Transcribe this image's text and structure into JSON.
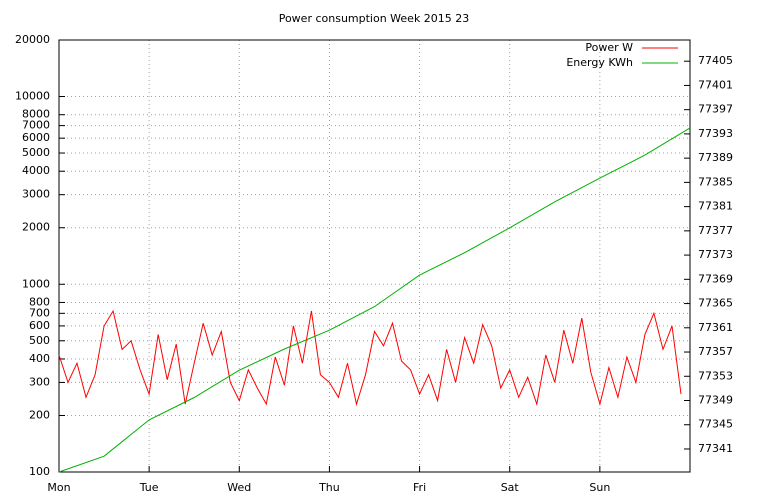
{
  "chart_data": {
    "type": "line",
    "title": "Power consumption Week 2015 23",
    "log_y": true,
    "grid": true,
    "legend": "top-right",
    "xlim": [
      0,
      7
    ],
    "xticks": [
      {
        "value": 0,
        "label": "Mon"
      },
      {
        "value": 1,
        "label": "Tue"
      },
      {
        "value": 2,
        "label": "Wed"
      },
      {
        "value": 3,
        "label": "Thu"
      },
      {
        "value": 4,
        "label": "Fri"
      },
      {
        "value": 5,
        "label": "Sat"
      },
      {
        "value": 6,
        "label": "Sun"
      }
    ],
    "ylim": [
      100,
      20000
    ],
    "yticks": [
      100,
      200,
      300,
      400,
      500,
      600,
      700,
      800,
      1000,
      2000,
      3000,
      4000,
      5000,
      6000,
      7000,
      8000,
      10000,
      20000
    ],
    "y2lim": [
      77337.2,
      77408.5
    ],
    "y2ticks": [
      77341,
      77345,
      77349,
      77353,
      77357,
      77361,
      77365,
      77369,
      77373,
      77377,
      77381,
      77385,
      77389,
      77393,
      77397,
      77401,
      77405
    ],
    "series": [
      {
        "name": "Power W",
        "color": "#ff0000",
        "x": [
          0,
          0.1,
          0.2,
          0.3,
          0.4,
          0.5,
          0.6,
          0.7,
          0.8,
          0.9,
          1,
          1.1,
          1.2,
          1.3,
          1.4,
          1.5,
          1.6,
          1.7,
          1.8,
          1.9,
          2,
          2.1,
          2.2,
          2.3,
          2.4,
          2.5,
          2.6,
          2.7,
          2.8,
          2.9,
          3,
          3.1,
          3.2,
          3.3,
          3.4,
          3.5,
          3.6,
          3.7,
          3.8,
          3.9,
          4,
          4.1,
          4.2,
          4.3,
          4.4,
          4.5,
          4.6,
          4.7,
          4.8,
          4.9,
          5,
          5.1,
          5.2,
          5.3,
          5.4,
          5.5,
          5.6,
          5.7,
          5.8,
          5.9,
          6,
          6.1,
          6.2,
          6.3,
          6.4,
          6.5,
          6.6,
          6.7,
          6.8,
          6.9
        ],
        "values": [
          420,
          300,
          380,
          250,
          330,
          600,
          720,
          450,
          500,
          350,
          260,
          540,
          310,
          480,
          230,
          380,
          620,
          420,
          560,
          300,
          240,
          350,
          280,
          230,
          410,
          290,
          600,
          380,
          720,
          330,
          300,
          250,
          380,
          230,
          330,
          560,
          470,
          620,
          390,
          350,
          260,
          330,
          240,
          450,
          300,
          520,
          380,
          610,
          470,
          280,
          350,
          250,
          320,
          230,
          420,
          300,
          570,
          380,
          660,
          340,
          230,
          360,
          250,
          410,
          300,
          540,
          700,
          450,
          600,
          260
        ]
      },
      {
        "name": "Energy KWh",
        "color": "#00b000",
        "axis": "y2",
        "x": [
          0,
          0.5,
          1,
          1.5,
          2,
          2.5,
          3,
          3.5,
          4,
          4.5,
          5,
          5.5,
          6,
          6.5,
          7
        ],
        "values": [
          77337.2,
          77339.8,
          77345.8,
          77349.5,
          77354,
          77357.5,
          77360.6,
          77364.5,
          77369.7,
          77373.4,
          77377.5,
          77381.8,
          77385.7,
          77389.5,
          77394
        ]
      }
    ]
  }
}
